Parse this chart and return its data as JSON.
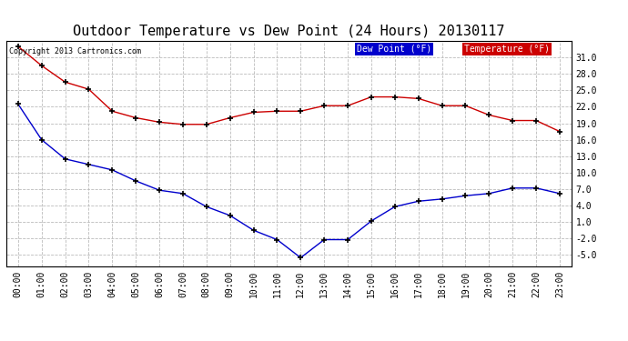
{
  "title": "Outdoor Temperature vs Dew Point (24 Hours) 20130117",
  "copyright": "Copyright 2013 Cartronics.com",
  "x_labels": [
    "00:00",
    "01:00",
    "02:00",
    "03:00",
    "04:00",
    "05:00",
    "06:00",
    "07:00",
    "08:00",
    "09:00",
    "10:00",
    "11:00",
    "12:00",
    "13:00",
    "14:00",
    "15:00",
    "16:00",
    "17:00",
    "18:00",
    "19:00",
    "20:00",
    "21:00",
    "22:00",
    "23:00"
  ],
  "temperature": [
    33.0,
    29.5,
    26.5,
    25.2,
    21.2,
    20.0,
    19.2,
    18.8,
    18.8,
    20.0,
    21.0,
    21.2,
    21.2,
    22.2,
    22.2,
    23.8,
    23.8,
    23.5,
    22.2,
    22.2,
    20.5,
    19.5,
    19.5,
    17.5
  ],
  "dew_point": [
    22.5,
    16.0,
    12.5,
    11.5,
    10.5,
    8.5,
    6.8,
    6.2,
    3.8,
    2.2,
    -0.5,
    -2.2,
    -5.5,
    -2.2,
    -2.2,
    1.2,
    3.8,
    4.8,
    5.2,
    5.8,
    6.2,
    7.2,
    7.2,
    6.2
  ],
  "temp_color": "#cc0000",
  "dew_color": "#0000cc",
  "ylim": [
    -7,
    34
  ],
  "yticks": [
    -5.0,
    -2.0,
    1.0,
    4.0,
    7.0,
    10.0,
    13.0,
    16.0,
    19.0,
    22.0,
    25.0,
    28.0,
    31.0
  ],
  "bg_color": "#ffffff",
  "plot_bg_color": "#ffffff",
  "grid_color": "#bbbbbb",
  "title_fontsize": 11,
  "legend_dew_label": "Dew Point (°F)",
  "legend_temp_label": "Temperature (°F)",
  "legend_dew_bg": "#0000cc",
  "legend_temp_bg": "#cc0000"
}
